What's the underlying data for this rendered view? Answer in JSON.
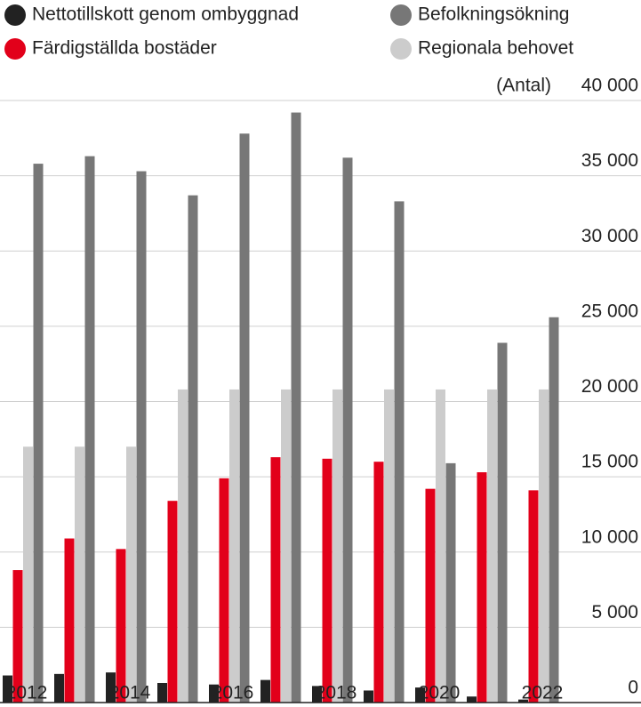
{
  "chart_data": {
    "type": "bar",
    "y_label": "(Antal)",
    "categories": [
      "2012",
      null,
      "2014",
      null,
      "2016",
      null,
      "2018",
      null,
      "2020",
      null,
      "2022"
    ],
    "series": [
      {
        "name": "Nettotillskott genom ombyggnad",
        "color": "#222222",
        "values": [
          1800,
          1900,
          2000,
          1300,
          1200,
          1500,
          1100,
          800,
          1000,
          400,
          200
        ]
      },
      {
        "name": "Färdigställda bostäder",
        "color": "#e2001a",
        "values": [
          8800,
          10900,
          10200,
          13400,
          14900,
          16300,
          16200,
          16000,
          14200,
          15300,
          14100
        ]
      },
      {
        "name": "Regionala behovet",
        "color": "#cccccc",
        "values": [
          17000,
          17000,
          17000,
          20800,
          20800,
          20800,
          20800,
          20800,
          20800,
          20800,
          20800
        ]
      },
      {
        "name": "Befolkningsökning",
        "color": "#777777",
        "values": [
          35800,
          36300,
          35300,
          33700,
          37800,
          39200,
          36200,
          33300,
          15900,
          23900,
          25600
        ]
      }
    ],
    "ylim": [
      0,
      40000
    ],
    "yticks": [
      0,
      {
        "value": 5000,
        "label": "5 000"
      },
      {
        "value": 10000,
        "label": "10 000"
      },
      {
        "value": 15000,
        "label": "15 000"
      },
      {
        "value": 20000,
        "label": "20 000"
      },
      {
        "value": 25000,
        "label": "25 000"
      },
      {
        "value": 30000,
        "label": "30 000"
      },
      {
        "value": 35000,
        "label": "35 000"
      },
      {
        "value": 40000,
        "label": "40 000"
      }
    ],
    "grid": true
  }
}
